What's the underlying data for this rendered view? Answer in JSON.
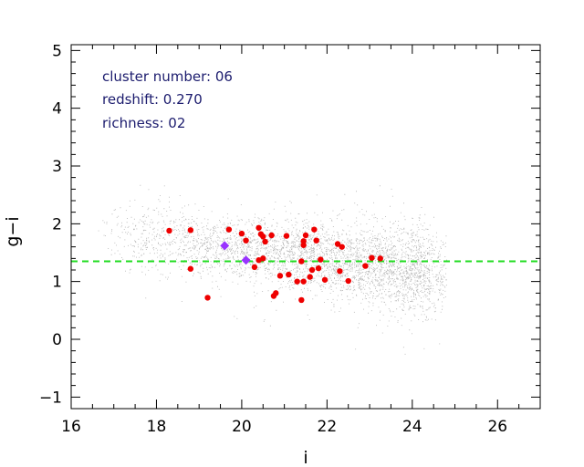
{
  "chart_data": {
    "type": "scatter",
    "title": "",
    "xlabel": "i",
    "ylabel": "g−i",
    "xlim": [
      16,
      27
    ],
    "ylim": [
      -1.2,
      5.1
    ],
    "xticks": [
      16,
      18,
      20,
      22,
      24,
      26
    ],
    "yticks": [
      -1,
      0,
      1,
      2,
      3,
      4,
      5
    ],
    "x_minor_step": 0.5,
    "y_minor_step": 0.2,
    "annotations": [
      "cluster number: 06",
      "redshift: 0.270",
      "richness: 02"
    ],
    "reference_line": {
      "type": "hline",
      "y": 1.35,
      "style": "dashed",
      "color": "#22dd22"
    },
    "colors": {
      "background_field": "#b4b4b4",
      "members": "#ee0000",
      "bcg": "#9933ff",
      "reference": "#22dd22"
    },
    "series": [
      {
        "name": "background field",
        "marker": "dot",
        "distribution": {
          "x_range": [
            16.6,
            24.8
          ],
          "y_center": 1.3,
          "count": 4500
        }
      },
      {
        "name": "cluster members",
        "marker": "circle",
        "points": [
          [
            18.3,
            1.88
          ],
          [
            18.8,
            1.89
          ],
          [
            18.8,
            1.22
          ],
          [
            19.2,
            0.72
          ],
          [
            19.7,
            1.9
          ],
          [
            20.0,
            1.83
          ],
          [
            20.1,
            1.71
          ],
          [
            20.3,
            1.25
          ],
          [
            20.4,
            1.93
          ],
          [
            20.45,
            1.82
          ],
          [
            20.5,
            1.78
          ],
          [
            20.55,
            1.69
          ],
          [
            20.4,
            1.37
          ],
          [
            20.5,
            1.4
          ],
          [
            20.7,
            1.8
          ],
          [
            20.75,
            0.75
          ],
          [
            20.8,
            0.8
          ],
          [
            20.9,
            1.1
          ],
          [
            21.05,
            1.79
          ],
          [
            21.1,
            1.12
          ],
          [
            21.3,
            1.0
          ],
          [
            21.4,
            1.35
          ],
          [
            21.45,
            1.0
          ],
          [
            21.45,
            1.63
          ],
          [
            21.45,
            1.7
          ],
          [
            21.4,
            0.68
          ],
          [
            21.5,
            1.8
          ],
          [
            21.6,
            1.08
          ],
          [
            21.65,
            1.2
          ],
          [
            21.7,
            1.9
          ],
          [
            21.75,
            1.71
          ],
          [
            21.8,
            1.23
          ],
          [
            21.85,
            1.38
          ],
          [
            21.95,
            1.03
          ],
          [
            22.25,
            1.65
          ],
          [
            22.3,
            1.18
          ],
          [
            22.35,
            1.6
          ],
          [
            22.5,
            1.01
          ],
          [
            22.9,
            1.27
          ],
          [
            23.05,
            1.41
          ],
          [
            23.25,
            1.4
          ]
        ]
      },
      {
        "name": "brightest cluster galaxies",
        "marker": "diamond",
        "points": [
          [
            19.6,
            1.62
          ],
          [
            20.1,
            1.37
          ]
        ]
      }
    ]
  }
}
